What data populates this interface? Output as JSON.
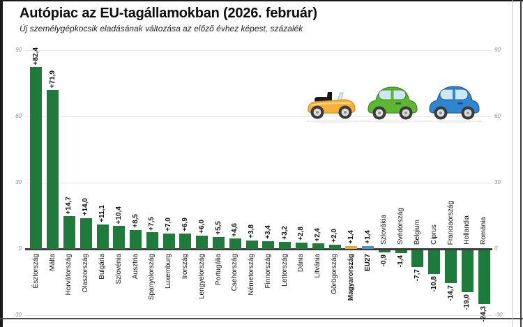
{
  "header": {
    "title": "Autópiac az EU-tagállamokban (2026. február)",
    "subtitle": "Új személygépkocsik eladásának változása az előző évhez képest, százalék"
  },
  "chart_data": {
    "type": "bar",
    "title": "Autópiac az EU-tagállamokban (2026. február)",
    "subtitle": "Új személygépkocsik eladásának változása az előző évhez képest, százalék",
    "xlabel": "",
    "ylabel": "",
    "ylim": [
      -30,
      90
    ],
    "yticks": [
      90,
      60,
      30,
      0,
      -30
    ],
    "grid": true,
    "legend": "none",
    "bar_color_default": "#1e7b3b",
    "highlight_colors": {
      "hungary_orange": "#efa72e",
      "eu_blue": "#4b8fd2"
    },
    "bars": [
      {
        "country": "Észtország",
        "value": 82.4,
        "label": "+82,4"
      },
      {
        "country": "Málta",
        "value": 71.9,
        "label": "+71,9"
      },
      {
        "country": "Horvátország",
        "value": 14.7,
        "label": "+14,7"
      },
      {
        "country": "Olaszország",
        "value": 14.0,
        "label": "+14,0"
      },
      {
        "country": "Bulgária",
        "value": 11.1,
        "label": "+11,1"
      },
      {
        "country": "Szlovénia",
        "value": 10.4,
        "label": "+10,4"
      },
      {
        "country": "Ausztria",
        "value": 8.5,
        "label": "+8,5"
      },
      {
        "country": "Spanyolország",
        "value": 7.5,
        "label": "+7,5"
      },
      {
        "country": "Luxemburg",
        "value": 7.0,
        "label": "+7,0"
      },
      {
        "country": "Írország",
        "value": 6.9,
        "label": "+6,9"
      },
      {
        "country": "Lengyelország",
        "value": 6.0,
        "label": "+6,0"
      },
      {
        "country": "Portugália",
        "value": 5.5,
        "label": "+5,5"
      },
      {
        "country": "Csehország",
        "value": 4.6,
        "label": "+4,6"
      },
      {
        "country": "Németország",
        "value": 3.8,
        "label": "+3,8"
      },
      {
        "country": "Finnország",
        "value": 3.4,
        "label": "+3,4"
      },
      {
        "country": "Lettország",
        "value": 3.2,
        "label": "+3,2"
      },
      {
        "country": "Dánia",
        "value": 2.8,
        "label": "+2,8"
      },
      {
        "country": "Litvánia",
        "value": 2.4,
        "label": "+2,4"
      },
      {
        "country": "Görögország",
        "value": 2.0,
        "label": "+2,0"
      },
      {
        "country": "Magyarország",
        "value": 1.4,
        "label": "+1,4",
        "color": "#efa72e",
        "bold": true
      },
      {
        "country": "EU27",
        "value": 1.4,
        "label": "+1,4",
        "color": "#4b8fd2",
        "bold": true
      },
      {
        "country": "Szlovákia",
        "value": -0.9,
        "label": "-0,9"
      },
      {
        "country": "Svédország",
        "value": -1.4,
        "label": "-1,4"
      },
      {
        "country": "Belgium",
        "value": -7.7,
        "label": "-7,7"
      },
      {
        "country": "Ciprus",
        "value": -10.8,
        "label": "-10,8"
      },
      {
        "country": "Franciaország",
        "value": -14.7,
        "label": "-14,7"
      },
      {
        "country": "Hollandia",
        "value": -19.0,
        "label": "-19,0"
      },
      {
        "country": "Románia",
        "value": -24.3,
        "label": "-24,3"
      }
    ]
  },
  "illustration": {
    "icons": [
      "convertible-car-icon",
      "green-car-icon",
      "blue-car-icon"
    ]
  }
}
